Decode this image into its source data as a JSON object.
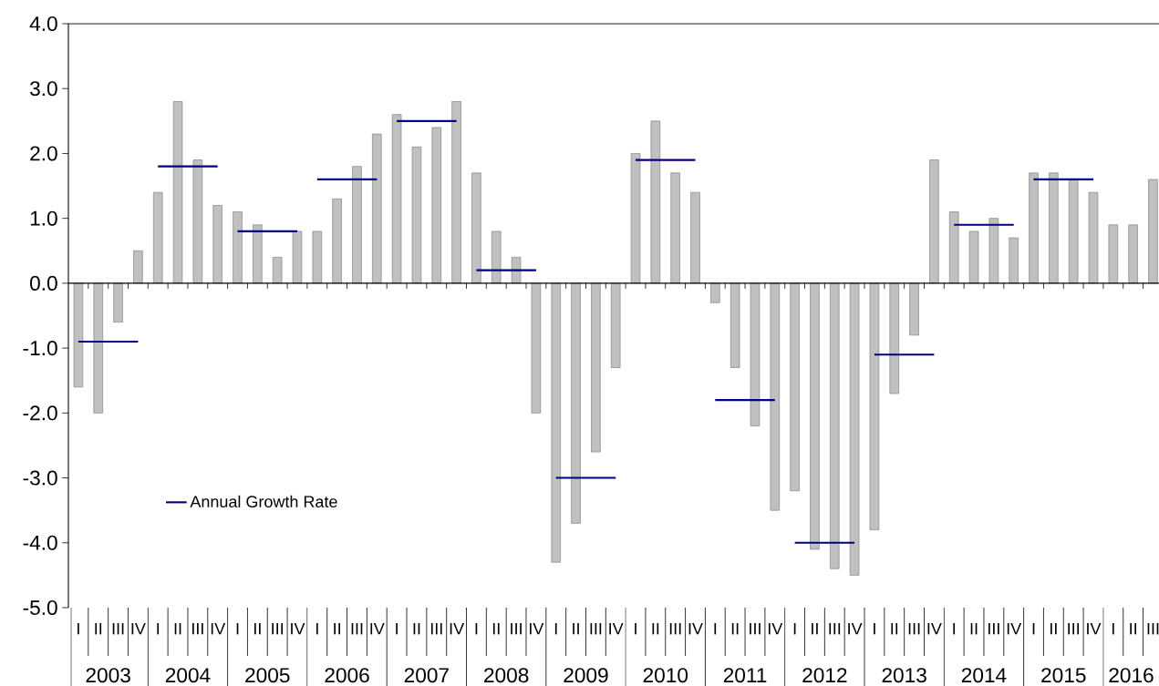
{
  "chart_data": {
    "type": "bar",
    "categories": [
      "I",
      "II",
      "III",
      "IV",
      "I",
      "II",
      "III",
      "IV",
      "I",
      "II",
      "III",
      "IV",
      "I",
      "II",
      "III",
      "IV",
      "I",
      "II",
      "III",
      "IV",
      "I",
      "II",
      "III",
      "IV",
      "I",
      "II",
      "III",
      "IV",
      "I",
      "II",
      "III",
      "IV",
      "I",
      "II",
      "III",
      "IV",
      "I",
      "II",
      "III",
      "IV",
      "I",
      "II",
      "III",
      "IV",
      "I",
      "II",
      "III",
      "IV",
      "I",
      "II",
      "III",
      "IV",
      "I",
      "II",
      "III"
    ],
    "series": [
      {
        "type": "bar",
        "color": "#c0c0c0",
        "values": [
          -1.6,
          -2.0,
          -0.6,
          0.5,
          1.4,
          2.8,
          1.9,
          1.2,
          1.1,
          0.9,
          0.4,
          0.8,
          0.8,
          1.3,
          1.8,
          2.3,
          2.6,
          2.1,
          2.4,
          2.8,
          1.7,
          0.8,
          0.4,
          -2.0,
          -4.3,
          -3.7,
          -2.6,
          -1.3,
          2.0,
          2.5,
          1.7,
          1.4,
          -0.3,
          -1.3,
          -2.2,
          -3.5,
          -3.2,
          -4.1,
          -4.4,
          -4.5,
          -3.8,
          -1.7,
          -0.8,
          1.9,
          1.1,
          0.8,
          1.0,
          0.7,
          1.7,
          1.7,
          1.6,
          1.4,
          0.9,
          0.9,
          1.6
        ]
      },
      {
        "type": "line",
        "name": "Annual Growth Rate",
        "color": "#000080",
        "values": [
          -0.9,
          -0.9,
          -0.9,
          -0.9,
          1.8,
          1.8,
          1.8,
          1.8,
          0.8,
          0.8,
          0.8,
          0.8,
          1.6,
          1.6,
          1.6,
          1.6,
          2.5,
          2.5,
          2.5,
          2.5,
          0.2,
          0.2,
          0.2,
          0.2,
          -3.0,
          -3.0,
          -3.0,
          -3.0,
          1.9,
          1.9,
          1.9,
          1.9,
          -1.8,
          -1.8,
          -1.8,
          -1.8,
          -4.0,
          -4.0,
          -4.0,
          -4.0,
          -1.1,
          -1.1,
          -1.1,
          -1.1,
          0.9,
          0.9,
          0.9,
          0.9,
          1.6,
          1.6,
          1.6,
          1.6,
          null,
          null,
          null
        ]
      }
    ],
    "annotations": [
      "2003",
      "2004",
      "2005",
      "2006",
      "2007",
      "2008",
      "2009",
      "2010",
      "2011",
      "2012",
      "2013",
      "2014",
      "2015",
      "2016"
    ],
    "ylim": [
      -5,
      4
    ],
    "yticks": [
      {
        "value": -5,
        "label": "-5.0"
      },
      {
        "value": -4,
        "label": "-4.0"
      },
      {
        "value": -3,
        "label": "-3.0"
      },
      {
        "value": -2,
        "label": "-2.0"
      },
      {
        "value": -1,
        "label": "-1.0"
      },
      {
        "value": 0,
        "label": "0.0"
      },
      {
        "value": 1,
        "label": "1.0"
      },
      {
        "value": 2,
        "label": "2.0"
      },
      {
        "value": 3,
        "label": "3.0"
      },
      {
        "value": 4,
        "label": "4.0"
      }
    ],
    "legend": "bottom left"
  }
}
